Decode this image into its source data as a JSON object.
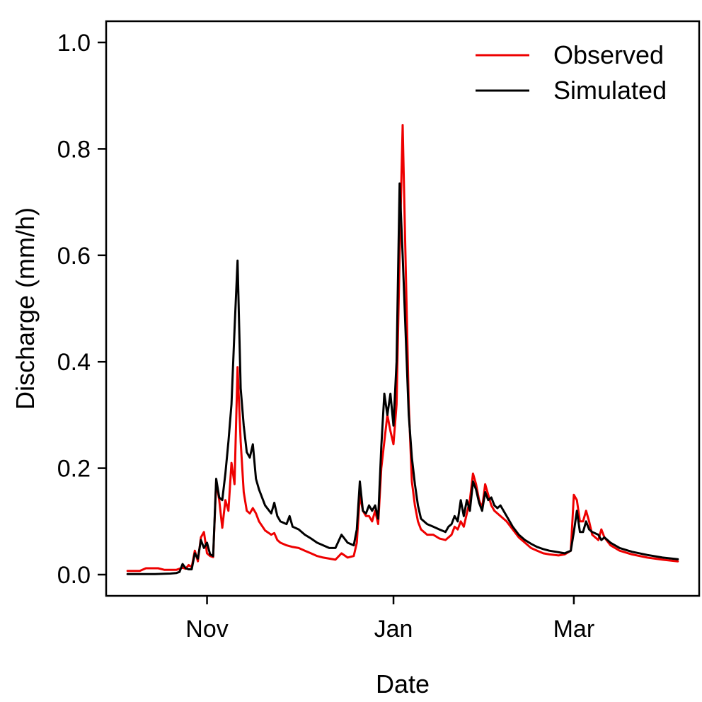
{
  "chart_data": {
    "type": "line",
    "title": "",
    "xlabel": "Date",
    "ylabel": "Discharge (mm/h)",
    "ylim": [
      0,
      1.0
    ],
    "xlim": [
      "2008-09-29",
      "2009-04-11"
    ],
    "xticks": [
      {
        "label": "Nov",
        "date": "2008-11-01"
      },
      {
        "label": "Jan",
        "date": "2009-01-01"
      },
      {
        "label": "Mar",
        "date": "2009-03-01"
      }
    ],
    "yticks": [
      {
        "label": "0.0",
        "value": 0.0
      },
      {
        "label": "0.2",
        "value": 0.2
      },
      {
        "label": "0.4",
        "value": 0.4
      },
      {
        "label": "0.6",
        "value": 0.6
      },
      {
        "label": "0.8",
        "value": 0.8
      },
      {
        "label": "1.0",
        "value": 1.0
      }
    ],
    "grid": false,
    "legend_position": "top-right",
    "series": [
      {
        "name": "Observed",
        "color": "#ee0000",
        "points": [
          [
            "2008-10-06",
            0.007
          ],
          [
            "2008-10-10",
            0.007
          ],
          [
            "2008-10-12",
            0.012
          ],
          [
            "2008-10-16",
            0.012
          ],
          [
            "2008-10-18",
            0.009
          ],
          [
            "2008-10-22",
            0.009
          ],
          [
            "2008-10-24",
            0.013
          ],
          [
            "2008-10-25",
            0.011
          ],
          [
            "2008-10-26",
            0.018
          ],
          [
            "2008-10-27",
            0.014
          ],
          [
            "2008-10-28",
            0.045
          ],
          [
            "2008-10-29",
            0.025
          ],
          [
            "2008-10-30",
            0.07
          ],
          [
            "2008-10-31",
            0.08
          ],
          [
            "2008-11-01",
            0.04
          ],
          [
            "2008-11-02",
            0.035
          ],
          [
            "2008-11-03",
            0.033
          ],
          [
            "2008-11-04",
            0.175
          ],
          [
            "2008-11-05",
            0.14
          ],
          [
            "2008-11-06",
            0.088
          ],
          [
            "2008-11-07",
            0.14
          ],
          [
            "2008-11-08",
            0.12
          ],
          [
            "2008-11-09",
            0.21
          ],
          [
            "2008-11-10",
            0.17
          ],
          [
            "2008-11-11",
            0.39
          ],
          [
            "2008-11-12",
            0.25
          ],
          [
            "2008-11-13",
            0.155
          ],
          [
            "2008-11-14",
            0.12
          ],
          [
            "2008-11-15",
            0.115
          ],
          [
            "2008-11-16",
            0.125
          ],
          [
            "2008-11-17",
            0.115
          ],
          [
            "2008-11-18",
            0.1
          ],
          [
            "2008-11-20",
            0.083
          ],
          [
            "2008-11-22",
            0.075
          ],
          [
            "2008-11-23",
            0.078
          ],
          [
            "2008-11-24",
            0.065
          ],
          [
            "2008-11-25",
            0.06
          ],
          [
            "2008-11-27",
            0.055
          ],
          [
            "2008-11-29",
            0.052
          ],
          [
            "2008-12-01",
            0.05
          ],
          [
            "2008-12-03",
            0.045
          ],
          [
            "2008-12-05",
            0.04
          ],
          [
            "2008-12-07",
            0.035
          ],
          [
            "2008-12-09",
            0.032
          ],
          [
            "2008-12-11",
            0.03
          ],
          [
            "2008-12-13",
            0.028
          ],
          [
            "2008-12-15",
            0.04
          ],
          [
            "2008-12-17",
            0.032
          ],
          [
            "2008-12-19",
            0.035
          ],
          [
            "2008-12-20",
            0.06
          ],
          [
            "2008-12-21",
            0.15
          ],
          [
            "2008-12-22",
            0.12
          ],
          [
            "2008-12-23",
            0.11
          ],
          [
            "2008-12-24",
            0.11
          ],
          [
            "2008-12-25",
            0.1
          ],
          [
            "2008-12-26",
            0.12
          ],
          [
            "2008-12-27",
            0.095
          ],
          [
            "2008-12-28",
            0.2
          ],
          [
            "2008-12-29",
            0.25
          ],
          [
            "2008-12-30",
            0.3
          ],
          [
            "2008-12-31",
            0.27
          ],
          [
            "2009-01-01",
            0.245
          ],
          [
            "2009-01-02",
            0.32
          ],
          [
            "2009-01-03",
            0.6
          ],
          [
            "2009-01-04",
            0.845
          ],
          [
            "2009-01-05",
            0.58
          ],
          [
            "2009-01-06",
            0.32
          ],
          [
            "2009-01-07",
            0.175
          ],
          [
            "2009-01-08",
            0.13
          ],
          [
            "2009-01-09",
            0.1
          ],
          [
            "2009-01-10",
            0.085
          ],
          [
            "2009-01-12",
            0.075
          ],
          [
            "2009-01-14",
            0.075
          ],
          [
            "2009-01-16",
            0.068
          ],
          [
            "2009-01-18",
            0.065
          ],
          [
            "2009-01-19",
            0.07
          ],
          [
            "2009-01-20",
            0.075
          ],
          [
            "2009-01-21",
            0.09
          ],
          [
            "2009-01-22",
            0.085
          ],
          [
            "2009-01-23",
            0.1
          ],
          [
            "2009-01-24",
            0.09
          ],
          [
            "2009-01-25",
            0.115
          ],
          [
            "2009-01-26",
            0.14
          ],
          [
            "2009-01-27",
            0.19
          ],
          [
            "2009-01-28",
            0.17
          ],
          [
            "2009-01-29",
            0.14
          ],
          [
            "2009-01-30",
            0.125
          ],
          [
            "2009-01-31",
            0.17
          ],
          [
            "2009-02-01",
            0.15
          ],
          [
            "2009-02-02",
            0.13
          ],
          [
            "2009-02-03",
            0.12
          ],
          [
            "2009-02-04",
            0.115
          ],
          [
            "2009-02-05",
            0.11
          ],
          [
            "2009-02-07",
            0.1
          ],
          [
            "2009-02-09",
            0.085
          ],
          [
            "2009-02-11",
            0.07
          ],
          [
            "2009-02-13",
            0.06
          ],
          [
            "2009-02-15",
            0.05
          ],
          [
            "2009-02-17",
            0.045
          ],
          [
            "2009-02-19",
            0.04
          ],
          [
            "2009-02-21",
            0.038
          ],
          [
            "2009-02-24",
            0.036
          ],
          [
            "2009-02-26",
            0.038
          ],
          [
            "2009-02-28",
            0.045
          ],
          [
            "2009-03-01",
            0.15
          ],
          [
            "2009-03-02",
            0.14
          ],
          [
            "2009-03-03",
            0.1
          ],
          [
            "2009-03-04",
            0.1
          ],
          [
            "2009-03-05",
            0.12
          ],
          [
            "2009-03-06",
            0.1
          ],
          [
            "2009-03-07",
            0.075
          ],
          [
            "2009-03-09",
            0.065
          ],
          [
            "2009-03-10",
            0.085
          ],
          [
            "2009-03-11",
            0.07
          ],
          [
            "2009-03-13",
            0.055
          ],
          [
            "2009-03-16",
            0.045
          ],
          [
            "2009-03-20",
            0.038
          ],
          [
            "2009-03-25",
            0.032
          ],
          [
            "2009-03-30",
            0.028
          ],
          [
            "2009-04-04",
            0.025
          ]
        ]
      },
      {
        "name": "Simulated",
        "color": "#000000",
        "points": [
          [
            "2008-10-06",
            0.001
          ],
          [
            "2008-10-10",
            0.001
          ],
          [
            "2008-10-15",
            0.001
          ],
          [
            "2008-10-20",
            0.002
          ],
          [
            "2008-10-22",
            0.003
          ],
          [
            "2008-10-23",
            0.005
          ],
          [
            "2008-10-24",
            0.02
          ],
          [
            "2008-10-25",
            0.012
          ],
          [
            "2008-10-26",
            0.01
          ],
          [
            "2008-10-27",
            0.01
          ],
          [
            "2008-10-28",
            0.04
          ],
          [
            "2008-10-29",
            0.03
          ],
          [
            "2008-10-30",
            0.065
          ],
          [
            "2008-10-31",
            0.05
          ],
          [
            "2008-11-01",
            0.06
          ],
          [
            "2008-11-02",
            0.038
          ],
          [
            "2008-11-03",
            0.035
          ],
          [
            "2008-11-04",
            0.18
          ],
          [
            "2008-11-05",
            0.145
          ],
          [
            "2008-11-06",
            0.14
          ],
          [
            "2008-11-07",
            0.19
          ],
          [
            "2008-11-08",
            0.25
          ],
          [
            "2008-11-09",
            0.32
          ],
          [
            "2008-11-10",
            0.46
          ],
          [
            "2008-11-11",
            0.59
          ],
          [
            "2008-11-12",
            0.35
          ],
          [
            "2008-11-13",
            0.28
          ],
          [
            "2008-11-14",
            0.23
          ],
          [
            "2008-11-15",
            0.22
          ],
          [
            "2008-11-16",
            0.245
          ],
          [
            "2008-11-17",
            0.18
          ],
          [
            "2008-11-18",
            0.16
          ],
          [
            "2008-11-20",
            0.13
          ],
          [
            "2008-11-22",
            0.115
          ],
          [
            "2008-11-23",
            0.135
          ],
          [
            "2008-11-24",
            0.11
          ],
          [
            "2008-11-25",
            0.1
          ],
          [
            "2008-11-27",
            0.095
          ],
          [
            "2008-11-28",
            0.11
          ],
          [
            "2008-11-29",
            0.09
          ],
          [
            "2008-12-01",
            0.085
          ],
          [
            "2008-12-03",
            0.075
          ],
          [
            "2008-12-05",
            0.068
          ],
          [
            "2008-12-07",
            0.06
          ],
          [
            "2008-12-09",
            0.055
          ],
          [
            "2008-12-11",
            0.05
          ],
          [
            "2008-12-13",
            0.05
          ],
          [
            "2008-12-15",
            0.075
          ],
          [
            "2008-12-17",
            0.06
          ],
          [
            "2008-12-19",
            0.055
          ],
          [
            "2008-12-20",
            0.085
          ],
          [
            "2008-12-21",
            0.175
          ],
          [
            "2008-12-22",
            0.12
          ],
          [
            "2008-12-23",
            0.115
          ],
          [
            "2008-12-24",
            0.13
          ],
          [
            "2008-12-25",
            0.12
          ],
          [
            "2008-12-26",
            0.13
          ],
          [
            "2008-12-27",
            0.105
          ],
          [
            "2008-12-28",
            0.24
          ],
          [
            "2008-12-29",
            0.34
          ],
          [
            "2008-12-30",
            0.3
          ],
          [
            "2008-12-31",
            0.34
          ],
          [
            "2009-01-01",
            0.28
          ],
          [
            "2009-01-02",
            0.4
          ],
          [
            "2009-01-03",
            0.735
          ],
          [
            "2009-01-04",
            0.6
          ],
          [
            "2009-01-05",
            0.45
          ],
          [
            "2009-01-06",
            0.3
          ],
          [
            "2009-01-07",
            0.22
          ],
          [
            "2009-01-08",
            0.17
          ],
          [
            "2009-01-09",
            0.13
          ],
          [
            "2009-01-10",
            0.105
          ],
          [
            "2009-01-12",
            0.095
          ],
          [
            "2009-01-14",
            0.09
          ],
          [
            "2009-01-16",
            0.085
          ],
          [
            "2009-01-18",
            0.08
          ],
          [
            "2009-01-19",
            0.09
          ],
          [
            "2009-01-20",
            0.095
          ],
          [
            "2009-01-21",
            0.11
          ],
          [
            "2009-01-22",
            0.1
          ],
          [
            "2009-01-23",
            0.14
          ],
          [
            "2009-01-24",
            0.11
          ],
          [
            "2009-01-25",
            0.14
          ],
          [
            "2009-01-26",
            0.12
          ],
          [
            "2009-01-27",
            0.175
          ],
          [
            "2009-01-28",
            0.16
          ],
          [
            "2009-01-29",
            0.135
          ],
          [
            "2009-01-30",
            0.12
          ],
          [
            "2009-01-31",
            0.155
          ],
          [
            "2009-02-01",
            0.14
          ],
          [
            "2009-02-02",
            0.145
          ],
          [
            "2009-02-03",
            0.13
          ],
          [
            "2009-02-04",
            0.125
          ],
          [
            "2009-02-05",
            0.13
          ],
          [
            "2009-02-07",
            0.11
          ],
          [
            "2009-02-09",
            0.09
          ],
          [
            "2009-02-11",
            0.075
          ],
          [
            "2009-02-13",
            0.065
          ],
          [
            "2009-02-15",
            0.058
          ],
          [
            "2009-02-17",
            0.052
          ],
          [
            "2009-02-19",
            0.048
          ],
          [
            "2009-02-21",
            0.045
          ],
          [
            "2009-02-24",
            0.042
          ],
          [
            "2009-02-26",
            0.04
          ],
          [
            "2009-02-28",
            0.045
          ],
          [
            "2009-03-01",
            0.08
          ],
          [
            "2009-03-02",
            0.12
          ],
          [
            "2009-03-03",
            0.08
          ],
          [
            "2009-03-04",
            0.08
          ],
          [
            "2009-03-05",
            0.1
          ],
          [
            "2009-03-06",
            0.085
          ],
          [
            "2009-03-07",
            0.08
          ],
          [
            "2009-03-09",
            0.075
          ],
          [
            "2009-03-10",
            0.065
          ],
          [
            "2009-03-11",
            0.07
          ],
          [
            "2009-03-13",
            0.06
          ],
          [
            "2009-03-16",
            0.05
          ],
          [
            "2009-03-20",
            0.043
          ],
          [
            "2009-03-25",
            0.037
          ],
          [
            "2009-03-30",
            0.032
          ],
          [
            "2009-04-04",
            0.029
          ]
        ]
      }
    ]
  }
}
